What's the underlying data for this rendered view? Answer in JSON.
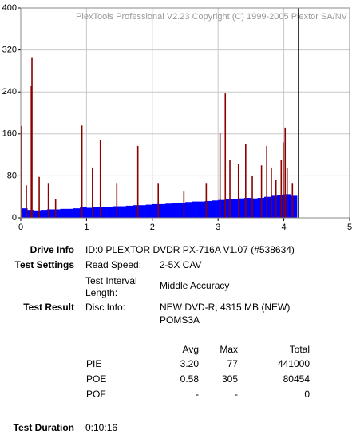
{
  "chart_data": {
    "type": "bar",
    "watermark": "PlexTools Professional V2.23 Copyright (C) 1999-2005 Plextor SA/NV",
    "xlim": [
      0,
      5
    ],
    "xticks": [
      0,
      1,
      2,
      3,
      4,
      5
    ],
    "ylim": [
      0,
      400
    ],
    "yticks": [
      0,
      80,
      160,
      240,
      320,
      400
    ],
    "grid": true,
    "cursor_x": 4.22,
    "cursor_color": "#000000",
    "series": [
      {
        "color": "#0000ff",
        "x": [
          0,
          0.1,
          0.2,
          0.3,
          0.4,
          0.5,
          0.6,
          0.7,
          0.8,
          0.9,
          1.0,
          1.1,
          1.2,
          1.3,
          1.4,
          1.5,
          1.6,
          1.7,
          1.8,
          1.9,
          2.0,
          2.1,
          2.2,
          2.3,
          2.4,
          2.5,
          2.6,
          2.7,
          2.8,
          2.9,
          3.0,
          3.1,
          3.2,
          3.3,
          3.4,
          3.5,
          3.6,
          3.7,
          3.8,
          3.9,
          4.0,
          4.1
        ],
        "values": [
          18,
          15,
          14,
          15,
          16,
          16,
          17,
          17,
          18,
          20,
          19,
          20,
          21,
          20,
          22,
          22,
          23,
          24,
          24,
          25,
          26,
          26,
          27,
          28,
          29,
          30,
          31,
          31,
          32,
          33,
          34,
          35,
          36,
          37,
          38,
          37,
          38,
          40,
          42,
          43,
          45,
          42
        ]
      },
      {
        "color": "#8b0000",
        "x": [
          0.01,
          0.085,
          0.16,
          0.17,
          0.28,
          0.42,
          0.53,
          0.93,
          1.09,
          1.21,
          1.46,
          1.78,
          2.09,
          2.48,
          2.82,
          3.03,
          3.11,
          3.18,
          3.31,
          3.42,
          3.52,
          3.66,
          3.74,
          3.81,
          3.88,
          3.96,
          3.99,
          4.02,
          4.05,
          4.13
        ],
        "values": [
          175,
          62,
          251,
          305,
          78,
          65,
          35,
          176,
          96,
          149,
          65,
          137,
          65,
          50,
          65,
          161,
          237,
          111,
          103,
          141,
          80,
          100,
          137,
          96,
          73,
          111,
          144,
          172,
          96,
          65
        ]
      }
    ]
  },
  "info": {
    "drive_info": {
      "label": "Drive Info",
      "value": "ID:0 PLEXTOR DVDR  PX-716A V1.07 (#538634)"
    },
    "test_settings": {
      "label": "Test Settings",
      "items": [
        {
          "label": "Read Speed:",
          "value": "2-5X CAV"
        },
        {
          "label": "Test Interval Length:",
          "value": "Middle Accuracy"
        }
      ]
    },
    "test_result": {
      "label": "Test Result",
      "item": {
        "label": "Disc Info:",
        "value": "NEW DVD-R, 4315 MB (NEW)",
        "value2": "POMS3A"
      }
    },
    "table": {
      "header": [
        "Avg",
        "Max",
        "Total"
      ],
      "rows": [
        [
          "PIE",
          "3.20",
          "77",
          "441000"
        ],
        [
          "POE",
          "0.58",
          "305",
          "80454"
        ],
        [
          "POF",
          "-",
          "-",
          "0"
        ]
      ]
    },
    "test_duration": {
      "label": "Test Duration",
      "value": "0:10:16"
    }
  }
}
